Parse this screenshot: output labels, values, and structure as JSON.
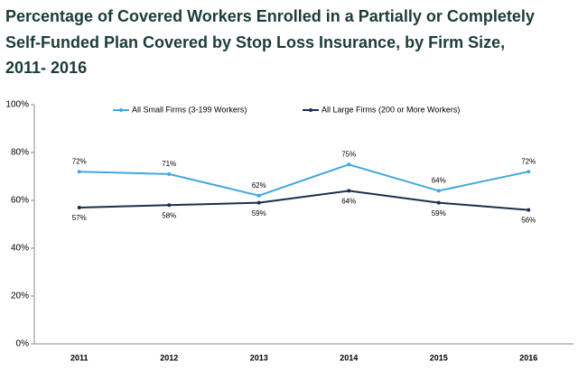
{
  "chart_data": {
    "type": "line",
    "title": [
      "Percentage of Covered Workers Enrolled in a Partially or Completely",
      "Self-Funded Plan Covered by Stop Loss Insurance, by Firm Size,",
      "2011- 2016"
    ],
    "categories": [
      "2011",
      "2012",
      "2013",
      "2014",
      "2015",
      "2016"
    ],
    "series": [
      {
        "name": "All Small Firms (3-199 Workers)",
        "color": "#41a8de",
        "values": [
          72,
          71,
          62,
          75,
          64,
          72
        ],
        "value_labels": [
          "72%",
          "71%",
          "62%",
          "75%",
          "64%",
          "72%"
        ]
      },
      {
        "name": "All Large Firms (200 or More Workers)",
        "color": "#1b2f4e",
        "values": [
          57,
          58,
          59,
          64,
          59,
          56
        ],
        "value_labels": [
          "57%",
          "58%",
          "59%",
          "64%",
          "59%",
          "56%"
        ]
      }
    ],
    "ylim": [
      0,
      100
    ],
    "yticks": [
      {
        "value": 0,
        "label": "0%"
      },
      {
        "value": 20,
        "label": "20%"
      },
      {
        "value": 40,
        "label": "40%"
      },
      {
        "value": 60,
        "label": "60%"
      },
      {
        "value": 80,
        "label": "80%"
      },
      {
        "value": 100,
        "label": "100%"
      }
    ],
    "legend": "top"
  }
}
